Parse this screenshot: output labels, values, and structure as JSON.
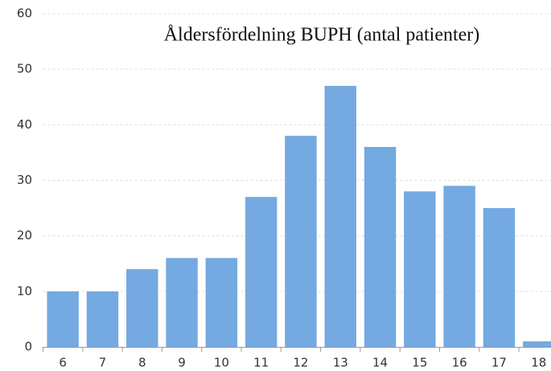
{
  "chart_data": {
    "type": "bar",
    "title": "Åldersfördelning BUPH (antal patienter)",
    "categories": [
      "6",
      "7",
      "8",
      "9",
      "10",
      "11",
      "12",
      "13",
      "14",
      "15",
      "16",
      "17",
      "18"
    ],
    "values": [
      10,
      10,
      14,
      16,
      16,
      27,
      38,
      47,
      36,
      28,
      29,
      25,
      1
    ],
    "color": "#74a9e1",
    "ylim": [
      0,
      60
    ],
    "yticks": [
      0,
      10,
      20,
      30,
      40,
      50,
      60
    ],
    "grid": true
  }
}
